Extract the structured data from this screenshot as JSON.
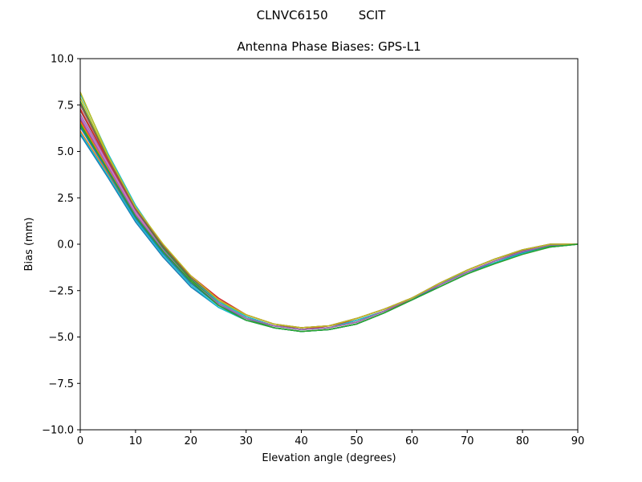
{
  "figure": {
    "suptitle": "CLNVC6150        SCIT"
  },
  "chart_data": {
    "type": "line",
    "title": "Antenna Phase Biases: GPS-L1",
    "xlabel": "Elevation angle (degrees)",
    "ylabel": "Bias (mm)",
    "xlim": [
      0,
      90
    ],
    "ylim": [
      -10,
      10
    ],
    "xticks": [
      0,
      10,
      20,
      30,
      40,
      50,
      60,
      70,
      80,
      90
    ],
    "yticks": [
      -10.0,
      -7.5,
      -5.0,
      -2.5,
      0.0,
      2.5,
      5.0,
      7.5,
      10.0
    ],
    "xtick_labels": [
      "0",
      "10",
      "20",
      "30",
      "40",
      "50",
      "60",
      "70",
      "80",
      "90"
    ],
    "ytick_labels": [
      "−10.0",
      "−7.5",
      "−5.0",
      "−2.5",
      "0.0",
      "2.5",
      "5.0",
      "7.5",
      "10.0"
    ],
    "grid": false,
    "x": [
      0,
      5,
      10,
      15,
      20,
      25,
      30,
      35,
      40,
      45,
      50,
      55,
      60,
      65,
      70,
      75,
      80,
      85,
      90
    ],
    "series": [
      {
        "color": "#1f77b4",
        "values": [
          5.9,
          3.6,
          1.2,
          -0.7,
          -2.3,
          -3.4,
          -4.1,
          -4.5,
          -4.7,
          -4.6,
          -4.3,
          -3.7,
          -3.0,
          -2.3,
          -1.6,
          -1.0,
          -0.5,
          -0.15,
          0.0
        ]
      },
      {
        "color": "#ff7f0e",
        "values": [
          6.1,
          3.8,
          1.4,
          -0.5,
          -2.1,
          -3.2,
          -4.0,
          -4.4,
          -4.6,
          -4.5,
          -4.2,
          -3.6,
          -3.0,
          -2.2,
          -1.5,
          -0.9,
          -0.4,
          -0.1,
          0.0
        ]
      },
      {
        "color": "#2ca02c",
        "values": [
          6.4,
          4.0,
          1.5,
          -0.4,
          -2.0,
          -3.2,
          -4.0,
          -4.5,
          -4.7,
          -4.6,
          -4.3,
          -3.7,
          -3.0,
          -2.3,
          -1.6,
          -1.0,
          -0.5,
          -0.15,
          0.0
        ]
      },
      {
        "color": "#d62728",
        "values": [
          6.7,
          4.2,
          1.7,
          -0.2,
          -1.8,
          -3.0,
          -3.9,
          -4.4,
          -4.6,
          -4.4,
          -4.1,
          -3.6,
          -3.0,
          -2.2,
          -1.5,
          -0.9,
          -0.4,
          -0.05,
          0.0
        ]
      },
      {
        "color": "#9467bd",
        "values": [
          7.0,
          4.4,
          1.8,
          -0.2,
          -1.9,
          -3.1,
          -3.9,
          -4.4,
          -4.6,
          -4.5,
          -4.2,
          -3.6,
          -2.9,
          -2.2,
          -1.5,
          -0.9,
          -0.4,
          -0.05,
          0.0
        ]
      },
      {
        "color": "#8c564b",
        "values": [
          7.2,
          4.5,
          1.9,
          -0.1,
          -1.8,
          -3.0,
          -3.9,
          -4.4,
          -4.5,
          -4.4,
          -4.0,
          -3.5,
          -2.9,
          -2.1,
          -1.4,
          -0.8,
          -0.35,
          -0.05,
          0.0
        ]
      },
      {
        "color": "#e377c2",
        "values": [
          6.9,
          4.3,
          1.7,
          -0.3,
          -1.9,
          -3.1,
          -4.0,
          -4.4,
          -4.6,
          -4.5,
          -4.2,
          -3.6,
          -2.9,
          -2.2,
          -1.5,
          -0.9,
          -0.4,
          -0.1,
          0.0
        ]
      },
      {
        "color": "#7f7f7f",
        "values": [
          7.5,
          4.6,
          1.9,
          -0.2,
          -1.9,
          -3.1,
          -3.9,
          -4.4,
          -4.6,
          -4.5,
          -4.1,
          -3.6,
          -2.9,
          -2.2,
          -1.5,
          -0.9,
          -0.4,
          -0.05,
          0.0
        ]
      },
      {
        "color": "#bcbd22",
        "values": [
          7.9,
          4.7,
          2.0,
          -0.1,
          -1.8,
          -3.0,
          -3.9,
          -4.4,
          -4.6,
          -4.5,
          -4.1,
          -3.6,
          -2.9,
          -2.2,
          -1.5,
          -0.9,
          -0.4,
          -0.05,
          0.0
        ]
      },
      {
        "color": "#17becf",
        "values": [
          8.1,
          4.9,
          2.1,
          -0.1,
          -1.8,
          -3.1,
          -3.9,
          -4.4,
          -4.6,
          -4.5,
          -4.1,
          -3.6,
          -2.9,
          -2.2,
          -1.4,
          -0.8,
          -0.3,
          0.0,
          0.0
        ]
      },
      {
        "color": "#1f77b4",
        "values": [
          6.3,
          3.9,
          1.4,
          -0.5,
          -2.1,
          -3.3,
          -4.0,
          -4.5,
          -4.7,
          -4.6,
          -4.3,
          -3.7,
          -3.0,
          -2.2,
          -1.5,
          -1.0,
          -0.45,
          -0.1,
          0.0
        ]
      },
      {
        "color": "#ff7f0e",
        "values": [
          6.6,
          4.1,
          1.6,
          -0.3,
          -2.0,
          -3.2,
          -4.0,
          -4.4,
          -4.6,
          -4.5,
          -4.2,
          -3.6,
          -2.9,
          -2.2,
          -1.5,
          -0.9,
          -0.4,
          -0.05,
          0.0
        ]
      },
      {
        "color": "#2ca02c",
        "values": [
          7.7,
          4.6,
          1.9,
          -0.2,
          -1.9,
          -3.2,
          -4.0,
          -4.5,
          -4.7,
          -4.6,
          -4.3,
          -3.7,
          -3.0,
          -2.3,
          -1.6,
          -1.0,
          -0.5,
          -0.1,
          0.0
        ]
      },
      {
        "color": "#d62728",
        "values": [
          7.3,
          4.5,
          1.9,
          -0.1,
          -1.7,
          -2.9,
          -3.8,
          -4.3,
          -4.5,
          -4.4,
          -4.0,
          -3.5,
          -2.9,
          -2.1,
          -1.4,
          -0.8,
          -0.3,
          0.0,
          0.0
        ]
      },
      {
        "color": "#9467bd",
        "values": [
          6.8,
          4.2,
          1.6,
          -0.3,
          -2.0,
          -3.2,
          -4.0,
          -4.4,
          -4.6,
          -4.5,
          -4.2,
          -3.6,
          -2.9,
          -2.2,
          -1.5,
          -0.9,
          -0.4,
          -0.05,
          0.0
        ]
      },
      {
        "color": "#8c564b",
        "values": [
          7.6,
          4.6,
          1.9,
          -0.1,
          -1.8,
          -3.0,
          -3.8,
          -4.3,
          -4.5,
          -4.4,
          -4.0,
          -3.5,
          -2.9,
          -2.1,
          -1.4,
          -0.8,
          -0.3,
          0.0,
          0.0
        ]
      },
      {
        "color": "#bcbd22",
        "values": [
          8.2,
          4.8,
          2.0,
          0.0,
          -1.7,
          -3.0,
          -3.8,
          -4.3,
          -4.5,
          -4.4,
          -4.0,
          -3.5,
          -2.9,
          -2.1,
          -1.4,
          -0.8,
          -0.3,
          0.0,
          0.0
        ]
      },
      {
        "color": "#17becf",
        "values": [
          6.0,
          3.7,
          1.3,
          -0.6,
          -2.2,
          -3.4,
          -4.1,
          -4.5,
          -4.7,
          -4.6,
          -4.3,
          -3.7,
          -3.0,
          -2.3,
          -1.6,
          -1.0,
          -0.5,
          -0.15,
          0.0
        ]
      },
      {
        "color": "#2ca02c",
        "values": [
          6.5,
          4.0,
          1.5,
          -0.4,
          -2.0,
          -3.3,
          -4.1,
          -4.5,
          -4.7,
          -4.6,
          -4.3,
          -3.7,
          -3.0,
          -2.3,
          -1.6,
          -1.05,
          -0.55,
          -0.15,
          0.0
        ]
      }
    ]
  }
}
